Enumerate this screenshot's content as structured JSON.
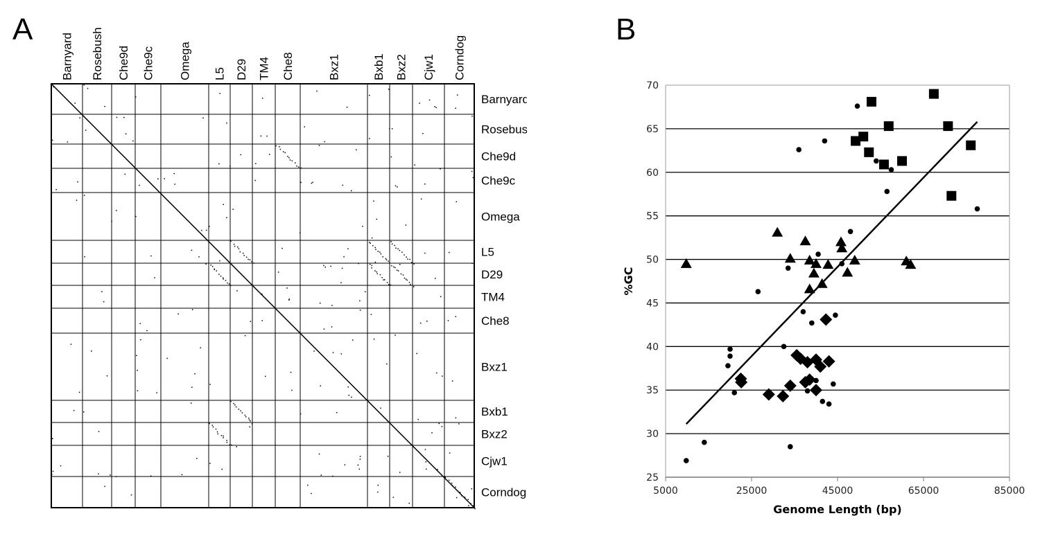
{
  "panels": {
    "a_label": "A",
    "b_label": "B"
  },
  "dotplot": {
    "genomes": [
      "Barnyard",
      "Rosebush",
      "Che9d",
      "Che9c",
      "Omega",
      "L5",
      "D29",
      "TM4",
      "Che8",
      "Bxz1",
      "Bxb1",
      "Bxz2",
      "Cjw1",
      "Corndog"
    ]
  },
  "chart_data": {
    "type": "scatter",
    "title": "",
    "xlabel": "Genome Length (bp)",
    "ylabel": "%GC",
    "xlim": [
      5000,
      85000
    ],
    "ylim": [
      25,
      70
    ],
    "xticks": [
      "5000",
      "25000",
      "45000",
      "65000",
      "85000"
    ],
    "yticks": [
      "25",
      "30",
      "35",
      "40",
      "45",
      "50",
      "55",
      "60",
      "65",
      "70"
    ],
    "grid": "horizontal",
    "series": [
      {
        "name": "squares",
        "marker": "square",
        "points": [
          [
            52900,
            68.1
          ],
          [
            67400,
            69.0
          ],
          [
            49200,
            63.6
          ],
          [
            51000,
            64.1
          ],
          [
            52300,
            62.3
          ],
          [
            56900,
            65.3
          ],
          [
            55800,
            60.9
          ],
          [
            60000,
            61.3
          ],
          [
            70700,
            65.3
          ],
          [
            76000,
            63.1
          ],
          [
            71500,
            57.3
          ]
        ]
      },
      {
        "name": "triangles",
        "marker": "triangle",
        "points": [
          [
            9800,
            49.5
          ],
          [
            31000,
            53.1
          ],
          [
            37500,
            52.1
          ],
          [
            34000,
            50.1
          ],
          [
            38500,
            49.9
          ],
          [
            40000,
            49.5
          ],
          [
            42800,
            49.4
          ],
          [
            39500,
            48.4
          ],
          [
            38500,
            46.6
          ],
          [
            41400,
            47.2
          ],
          [
            45800,
            52.0
          ],
          [
            46000,
            51.3
          ],
          [
            47300,
            48.5
          ],
          [
            49000,
            49.9
          ],
          [
            61000,
            49.8
          ],
          [
            62000,
            49.4
          ]
        ]
      },
      {
        "name": "diamonds",
        "marker": "diamond",
        "points": [
          [
            22500,
            36.3
          ],
          [
            22600,
            35.9
          ],
          [
            29000,
            34.5
          ],
          [
            32300,
            34.3
          ],
          [
            34000,
            35.5
          ],
          [
            35500,
            39.0
          ],
          [
            36400,
            38.6
          ],
          [
            38000,
            38.2
          ],
          [
            40000,
            38.5
          ],
          [
            41000,
            37.7
          ],
          [
            43000,
            38.3
          ],
          [
            37500,
            35.9
          ],
          [
            38500,
            36.2
          ],
          [
            40000,
            35.0
          ],
          [
            42300,
            43.1
          ]
        ]
      },
      {
        "name": "circles",
        "marker": "circle",
        "points": [
          [
            9800,
            26.9
          ],
          [
            14000,
            29.0
          ],
          [
            20000,
            39.7
          ],
          [
            20000,
            38.9
          ],
          [
            19500,
            37.8
          ],
          [
            21000,
            34.7
          ],
          [
            26500,
            46.3
          ],
          [
            32500,
            40.0
          ],
          [
            33500,
            49.0
          ],
          [
            34000,
            28.5
          ],
          [
            36000,
            62.6
          ],
          [
            37000,
            44.0
          ],
          [
            38000,
            34.9
          ],
          [
            39000,
            42.7
          ],
          [
            40000,
            36.1
          ],
          [
            40500,
            50.6
          ],
          [
            41500,
            33.7
          ],
          [
            42000,
            63.6
          ],
          [
            43000,
            33.4
          ],
          [
            44000,
            35.7
          ],
          [
            44500,
            43.6
          ],
          [
            46000,
            49.5
          ],
          [
            48000,
            53.2
          ],
          [
            49600,
            67.6
          ],
          [
            54000,
            61.3
          ],
          [
            56500,
            57.8
          ],
          [
            57500,
            60.3
          ],
          [
            77500,
            55.8
          ]
        ]
      }
    ],
    "trendline": [
      [
        9800,
        31.1
      ],
      [
        77500,
        65.8
      ]
    ]
  }
}
